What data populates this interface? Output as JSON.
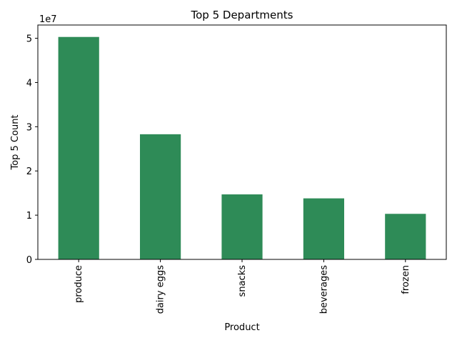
{
  "chart_data": {
    "type": "bar",
    "title": "Top 5 Departments",
    "xlabel": "Product",
    "ylabel": "Top 5 Count",
    "offset_label": "1e7",
    "categories": [
      "produce",
      "dairy eggs",
      "snacks",
      "beverages",
      "frozen"
    ],
    "values": [
      50300000,
      28300000,
      14700000,
      13800000,
      10300000
    ],
    "ylim": [
      0,
      53000000
    ],
    "yticks": [
      0,
      10000000,
      20000000,
      30000000,
      40000000,
      50000000
    ],
    "ytick_labels": [
      "0",
      "1",
      "2",
      "3",
      "4",
      "5"
    ],
    "bar_color": "#2e8b57",
    "grid": false,
    "legend": "none"
  }
}
